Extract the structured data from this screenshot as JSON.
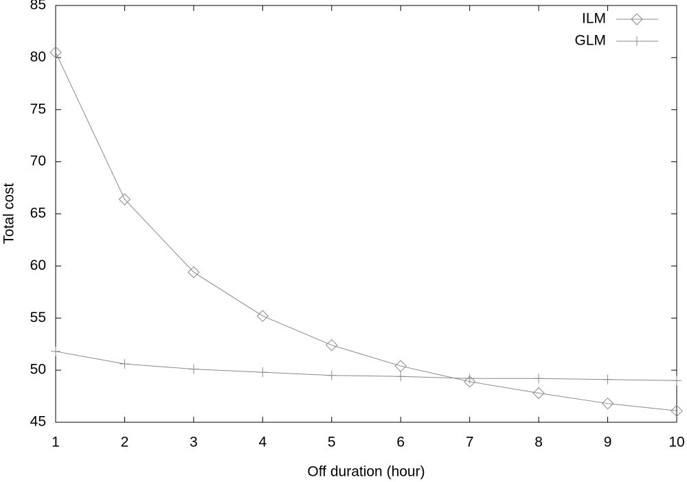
{
  "chart_data": {
    "type": "line",
    "x_label": "Off duration (hour)",
    "y_label": "Total cost",
    "x": [
      1,
      2,
      3,
      4,
      5,
      6,
      7,
      8,
      9,
      10
    ],
    "series": [
      {
        "name": "ILM",
        "color": "#888888",
        "marker": "diamond",
        "values": [
          80.5,
          66.4,
          59.4,
          55.2,
          52.4,
          50.4,
          48.9,
          47.8,
          46.8,
          46.1
        ]
      },
      {
        "name": "GLM",
        "color": "#888888",
        "marker": "plus",
        "values": [
          51.8,
          50.6,
          50.1,
          49.8,
          49.5,
          49.4,
          49.2,
          49.2,
          49.1,
          49.0
        ]
      }
    ],
    "xlim": [
      1,
      10
    ],
    "xticks": [
      1,
      2,
      3,
      4,
      5,
      6,
      7,
      8,
      9,
      10
    ],
    "ylim": [
      45,
      85
    ],
    "yticks": [
      45,
      50,
      55,
      60,
      65,
      70,
      75,
      80,
      85
    ],
    "grid": false,
    "legend": "top-right"
  }
}
